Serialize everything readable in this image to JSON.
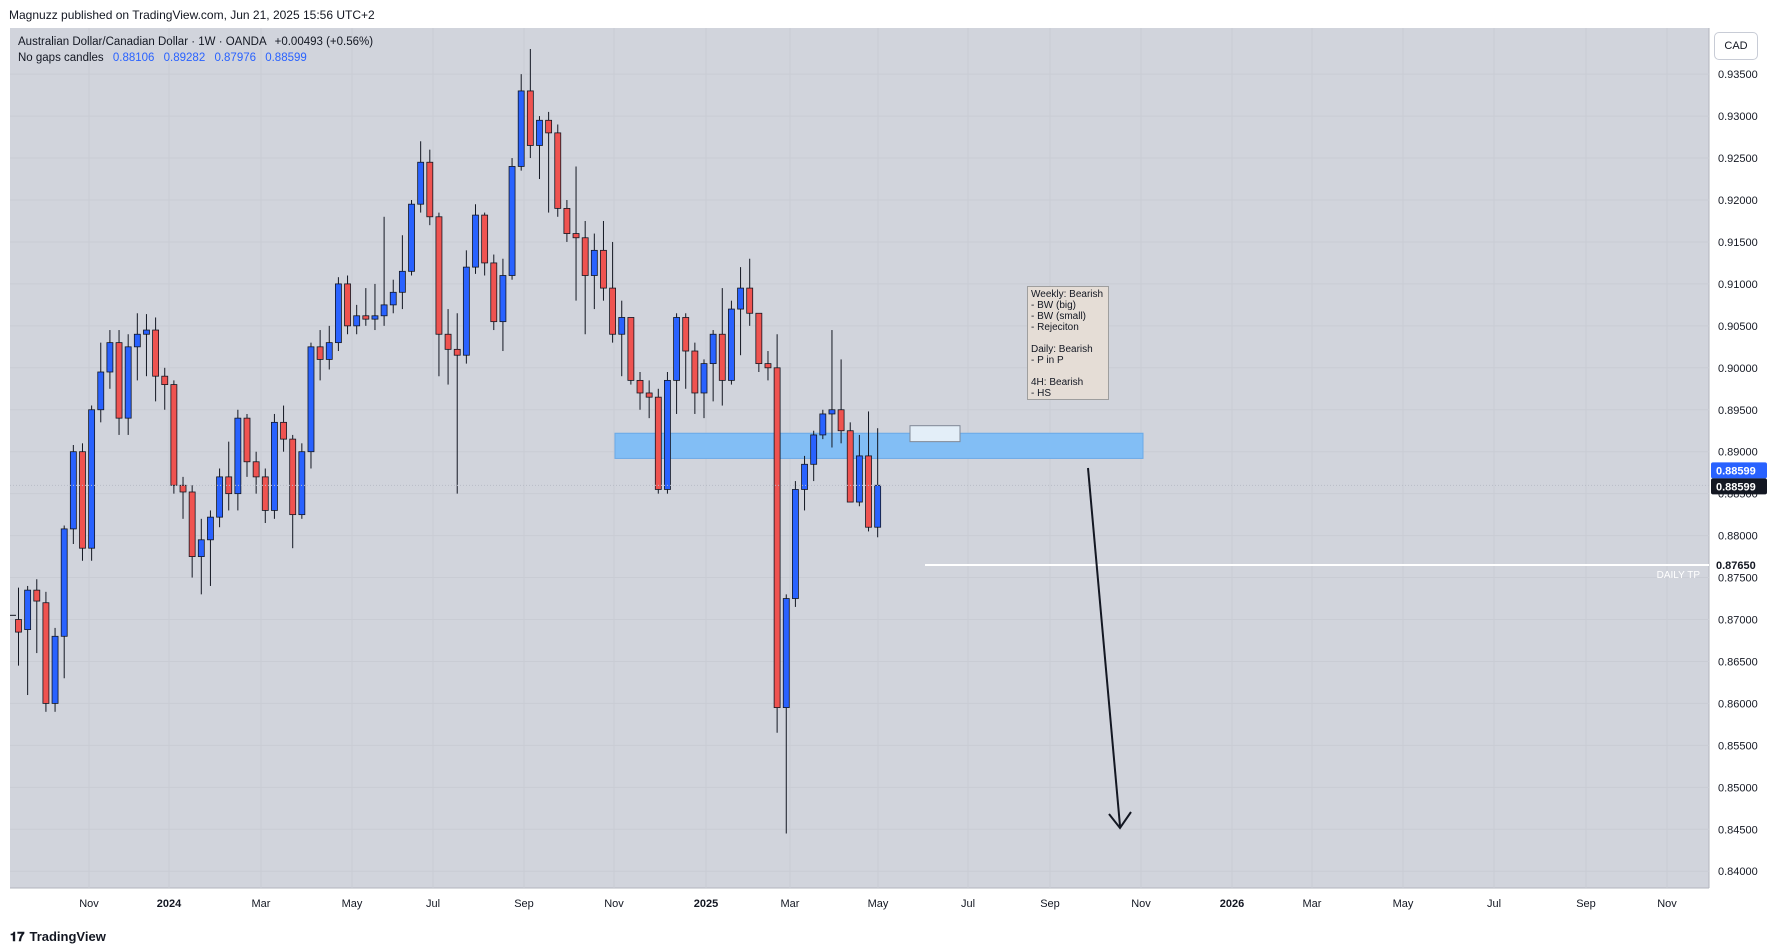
{
  "header": {
    "published_by": "Magnuzz published on TradingView.com, Jun 21, 2025 15:56 UTC+2"
  },
  "legend": {
    "symbol": "Australian Dollar/Canadian Dollar · 1W · OANDA",
    "change": "+0.00493 (+0.56%)",
    "indicator": "No gaps candles",
    "values": [
      "0.88106",
      "0.89282",
      "0.87976",
      "0.88599"
    ]
  },
  "currency_button": "CAD",
  "footer": {
    "brand": "TradingView"
  },
  "annotation": {
    "lines": [
      "Weekly: Bearish",
      "- BW (big)",
      "- BW (small)",
      "- Rejeciton",
      "",
      "Daily: Bearish",
      "- P in P",
      "",
      "4H: Bearish",
      "- HS"
    ]
  },
  "levels": {
    "daily_tp": {
      "label": "DAILY TP",
      "price": "0.87650",
      "value": 0.8765
    },
    "last_price": {
      "label": "0.88599",
      "value": 0.88599
    },
    "last_price_2": {
      "label": "0.88599",
      "value": 0.88599
    }
  },
  "zone": {
    "low": 0.8892,
    "high": 0.8922
  },
  "colors": {
    "bg": "#d1d4dc",
    "up": "#2962ff",
    "down": "#ef5350",
    "zone": "#82bef5",
    "tp_line": "#ffffff"
  },
  "chart_data": {
    "type": "candlestick",
    "title": "",
    "yaxis_side": "right",
    "ylim": [
      0.838,
      0.9405
    ],
    "y_ticks": [
      "0.93500",
      "0.93000",
      "0.92500",
      "0.92000",
      "0.91500",
      "0.91000",
      "0.90500",
      "0.90000",
      "0.89500",
      "0.89000",
      "0.88500",
      "0.88000",
      "0.87500",
      "0.87000",
      "0.86500",
      "0.86000",
      "0.85500",
      "0.85000",
      "0.84500",
      "0.84000"
    ],
    "x_ticks": [
      "Nov",
      "2024",
      "Mar",
      "May",
      "Jul",
      "Sep",
      "Nov",
      "2025",
      "Mar",
      "May",
      "Jul",
      "Sep",
      "Nov",
      "2026",
      "Mar",
      "May",
      "Jul",
      "Sep",
      "Nov"
    ],
    "candles": [
      {
        "o": 0.87,
        "h": 0.8738,
        "l": 0.8645,
        "c": 0.8685
      },
      {
        "o": 0.8688,
        "h": 0.874,
        "l": 0.861,
        "c": 0.8735
      },
      {
        "o": 0.8735,
        "h": 0.8748,
        "l": 0.866,
        "c": 0.8722
      },
      {
        "o": 0.872,
        "h": 0.8733,
        "l": 0.859,
        "c": 0.86
      },
      {
        "o": 0.86,
        "h": 0.869,
        "l": 0.859,
        "c": 0.868
      },
      {
        "o": 0.868,
        "h": 0.8812,
        "l": 0.863,
        "c": 0.8808
      },
      {
        "o": 0.8808,
        "h": 0.8908,
        "l": 0.879,
        "c": 0.89
      },
      {
        "o": 0.89,
        "h": 0.891,
        "l": 0.877,
        "c": 0.8785
      },
      {
        "o": 0.8785,
        "h": 0.8955,
        "l": 0.877,
        "c": 0.895
      },
      {
        "o": 0.895,
        "h": 0.903,
        "l": 0.8935,
        "c": 0.8995
      },
      {
        "o": 0.8995,
        "h": 0.9045,
        "l": 0.8975,
        "c": 0.903
      },
      {
        "o": 0.903,
        "h": 0.9045,
        "l": 0.892,
        "c": 0.894
      },
      {
        "o": 0.894,
        "h": 0.904,
        "l": 0.892,
        "c": 0.9025
      },
      {
        "o": 0.9025,
        "h": 0.9065,
        "l": 0.8985,
        "c": 0.904
      },
      {
        "o": 0.904,
        "h": 0.9064,
        "l": 0.899,
        "c": 0.9045
      },
      {
        "o": 0.9045,
        "h": 0.906,
        "l": 0.896,
        "c": 0.899
      },
      {
        "o": 0.899,
        "h": 0.9,
        "l": 0.895,
        "c": 0.898
      },
      {
        "o": 0.898,
        "h": 0.8985,
        "l": 0.885,
        "c": 0.886
      },
      {
        "o": 0.886,
        "h": 0.887,
        "l": 0.882,
        "c": 0.8852
      },
      {
        "o": 0.8852,
        "h": 0.886,
        "l": 0.875,
        "c": 0.8775
      },
      {
        "o": 0.8775,
        "h": 0.882,
        "l": 0.873,
        "c": 0.8795
      },
      {
        "o": 0.8795,
        "h": 0.883,
        "l": 0.874,
        "c": 0.8822
      },
      {
        "o": 0.8822,
        "h": 0.888,
        "l": 0.881,
        "c": 0.887
      },
      {
        "o": 0.887,
        "h": 0.8912,
        "l": 0.883,
        "c": 0.885
      },
      {
        "o": 0.885,
        "h": 0.895,
        "l": 0.883,
        "c": 0.894
      },
      {
        "o": 0.894,
        "h": 0.8945,
        "l": 0.887,
        "c": 0.8888
      },
      {
        "o": 0.8888,
        "h": 0.89,
        "l": 0.885,
        "c": 0.887
      },
      {
        "o": 0.887,
        "h": 0.888,
        "l": 0.8815,
        "c": 0.883
      },
      {
        "o": 0.883,
        "h": 0.8945,
        "l": 0.882,
        "c": 0.8935
      },
      {
        "o": 0.8935,
        "h": 0.8955,
        "l": 0.89,
        "c": 0.8915
      },
      {
        "o": 0.8915,
        "h": 0.892,
        "l": 0.8785,
        "c": 0.8825
      },
      {
        "o": 0.8825,
        "h": 0.891,
        "l": 0.882,
        "c": 0.89
      },
      {
        "o": 0.89,
        "h": 0.903,
        "l": 0.888,
        "c": 0.9025
      },
      {
        "o": 0.9025,
        "h": 0.9045,
        "l": 0.8985,
        "c": 0.901
      },
      {
        "o": 0.901,
        "h": 0.905,
        "l": 0.8998,
        "c": 0.903
      },
      {
        "o": 0.903,
        "h": 0.9108,
        "l": 0.902,
        "c": 0.91
      },
      {
        "o": 0.91,
        "h": 0.911,
        "l": 0.904,
        "c": 0.905
      },
      {
        "o": 0.905,
        "h": 0.9075,
        "l": 0.904,
        "c": 0.9062
      },
      {
        "o": 0.9062,
        "h": 0.9095,
        "l": 0.905,
        "c": 0.9058
      },
      {
        "o": 0.9058,
        "h": 0.91,
        "l": 0.9045,
        "c": 0.9062
      },
      {
        "o": 0.9062,
        "h": 0.918,
        "l": 0.905,
        "c": 0.9075
      },
      {
        "o": 0.9075,
        "h": 0.9105,
        "l": 0.9065,
        "c": 0.909
      },
      {
        "o": 0.909,
        "h": 0.9158,
        "l": 0.907,
        "c": 0.9115
      },
      {
        "o": 0.9115,
        "h": 0.92,
        "l": 0.911,
        "c": 0.9195
      },
      {
        "o": 0.9195,
        "h": 0.927,
        "l": 0.9185,
        "c": 0.9245
      },
      {
        "o": 0.9245,
        "h": 0.926,
        "l": 0.917,
        "c": 0.918
      },
      {
        "o": 0.918,
        "h": 0.9185,
        "l": 0.899,
        "c": 0.904
      },
      {
        "o": 0.904,
        "h": 0.907,
        "l": 0.898,
        "c": 0.9022
      },
      {
        "o": 0.9022,
        "h": 0.9065,
        "l": 0.885,
        "c": 0.9015
      },
      {
        "o": 0.9015,
        "h": 0.914,
        "l": 0.9005,
        "c": 0.912
      },
      {
        "o": 0.912,
        "h": 0.9195,
        "l": 0.9112,
        "c": 0.9182
      },
      {
        "o": 0.9182,
        "h": 0.9185,
        "l": 0.911,
        "c": 0.9125
      },
      {
        "o": 0.9125,
        "h": 0.9135,
        "l": 0.9045,
        "c": 0.9055
      },
      {
        "o": 0.9055,
        "h": 0.913,
        "l": 0.902,
        "c": 0.911
      },
      {
        "o": 0.911,
        "h": 0.925,
        "l": 0.9105,
        "c": 0.924
      },
      {
        "o": 0.924,
        "h": 0.935,
        "l": 0.9235,
        "c": 0.933
      },
      {
        "o": 0.933,
        "h": 0.938,
        "l": 0.925,
        "c": 0.9265
      },
      {
        "o": 0.9265,
        "h": 0.93,
        "l": 0.9225,
        "c": 0.9295
      },
      {
        "o": 0.9295,
        "h": 0.9305,
        "l": 0.9185,
        "c": 0.928
      },
      {
        "o": 0.928,
        "h": 0.929,
        "l": 0.918,
        "c": 0.919
      },
      {
        "o": 0.919,
        "h": 0.92,
        "l": 0.915,
        "c": 0.916
      },
      {
        "o": 0.916,
        "h": 0.924,
        "l": 0.908,
        "c": 0.9155
      },
      {
        "o": 0.9155,
        "h": 0.9175,
        "l": 0.904,
        "c": 0.911
      },
      {
        "o": 0.911,
        "h": 0.916,
        "l": 0.907,
        "c": 0.914
      },
      {
        "o": 0.914,
        "h": 0.9175,
        "l": 0.908,
        "c": 0.9095
      },
      {
        "o": 0.9095,
        "h": 0.915,
        "l": 0.903,
        "c": 0.904
      },
      {
        "o": 0.904,
        "h": 0.908,
        "l": 0.899,
        "c": 0.906
      },
      {
        "o": 0.906,
        "h": 0.906,
        "l": 0.898,
        "c": 0.8985
      },
      {
        "o": 0.8985,
        "h": 0.8995,
        "l": 0.895,
        "c": 0.897
      },
      {
        "o": 0.897,
        "h": 0.8985,
        "l": 0.894,
        "c": 0.8965
      },
      {
        "o": 0.8965,
        "h": 0.8975,
        "l": 0.885,
        "c": 0.8855
      },
      {
        "o": 0.8855,
        "h": 0.8995,
        "l": 0.885,
        "c": 0.8985
      },
      {
        "o": 0.8985,
        "h": 0.9065,
        "l": 0.8945,
        "c": 0.906
      },
      {
        "o": 0.906,
        "h": 0.9065,
        "l": 0.8975,
        "c": 0.902
      },
      {
        "o": 0.902,
        "h": 0.903,
        "l": 0.8945,
        "c": 0.897
      },
      {
        "o": 0.897,
        "h": 0.901,
        "l": 0.894,
        "c": 0.9005
      },
      {
        "o": 0.9005,
        "h": 0.9045,
        "l": 0.896,
        "c": 0.904
      },
      {
        "o": 0.904,
        "h": 0.9095,
        "l": 0.8955,
        "c": 0.8985
      },
      {
        "o": 0.8985,
        "h": 0.908,
        "l": 0.898,
        "c": 0.907
      },
      {
        "o": 0.907,
        "h": 0.912,
        "l": 0.9015,
        "c": 0.9095
      },
      {
        "o": 0.9095,
        "h": 0.913,
        "l": 0.905,
        "c": 0.9065
      },
      {
        "o": 0.9065,
        "h": 0.906,
        "l": 0.8995,
        "c": 0.9005
      },
      {
        "o": 0.9005,
        "h": 0.902,
        "l": 0.8985,
        "c": 0.9
      },
      {
        "o": 0.9,
        "h": 0.904,
        "l": 0.8565,
        "c": 0.8595
      },
      {
        "o": 0.8595,
        "h": 0.873,
        "l": 0.8445,
        "c": 0.8725
      },
      {
        "o": 0.8725,
        "h": 0.8865,
        "l": 0.8715,
        "c": 0.8855
      },
      {
        "o": 0.8855,
        "h": 0.8895,
        "l": 0.883,
        "c": 0.8885
      },
      {
        "o": 0.8885,
        "h": 0.8925,
        "l": 0.8865,
        "c": 0.892
      },
      {
        "o": 0.892,
        "h": 0.895,
        "l": 0.8915,
        "c": 0.8945
      },
      {
        "o": 0.8945,
        "h": 0.9045,
        "l": 0.8905,
        "c": 0.895
      },
      {
        "o": 0.895,
        "h": 0.901,
        "l": 0.891,
        "c": 0.8925
      },
      {
        "o": 0.8925,
        "h": 0.8935,
        "l": 0.884,
        "c": 0.884
      },
      {
        "o": 0.884,
        "h": 0.892,
        "l": 0.8835,
        "c": 0.8895
      },
      {
        "o": 0.8895,
        "h": 0.8948,
        "l": 0.8805,
        "c": 0.881
      },
      {
        "o": 0.881,
        "h": 0.8928,
        "l": 0.8798,
        "c": 0.886
      }
    ]
  }
}
